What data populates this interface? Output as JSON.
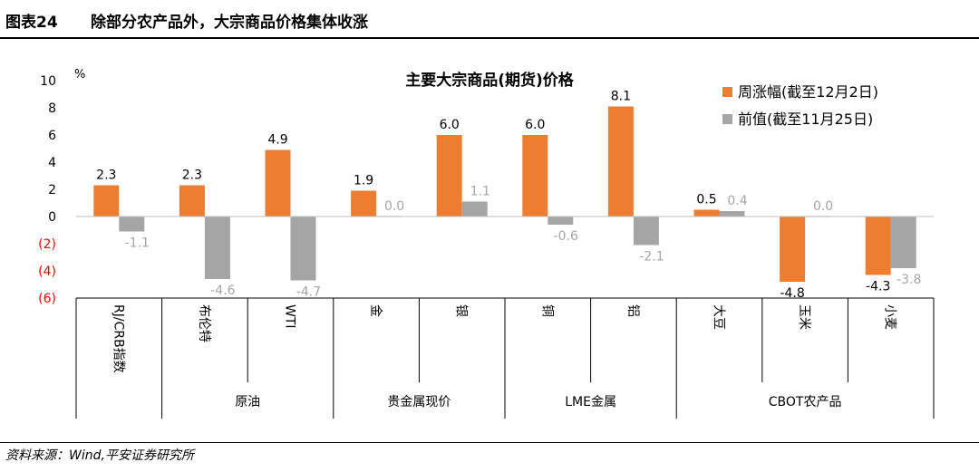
{
  "header": {
    "figure_label": "图表24",
    "figure_title": "除部分农产品外，大宗商品价格集体收涨"
  },
  "footer": {
    "source": "资料来源：Wind,平安证券研究所"
  },
  "colors": {
    "weekly": "#ED7D31",
    "previous": "#A5A5A5",
    "negative_tick": "#FF0000"
  },
  "chart_data": {
    "type": "bar",
    "title": "主要大宗商品(期货)价格",
    "unit": "%",
    "ylim": [
      -6,
      10
    ],
    "yticks": [
      10,
      8,
      6,
      4,
      2,
      0,
      -2,
      -4,
      -6
    ],
    "ytick_labels": [
      "10",
      "8",
      "6",
      "4",
      "2",
      "0",
      "(2)",
      "(4)",
      "(6)"
    ],
    "grid": false,
    "legend_position": "top-right",
    "categories": [
      "RJ/CRB指数",
      "布伦特",
      "WTI",
      "金",
      "银",
      "铜",
      "铝",
      "大豆",
      "玉米",
      "小麦"
    ],
    "groups": [
      {
        "label": "",
        "categories": [
          "RJ/CRB指数"
        ]
      },
      {
        "label": "原油",
        "categories": [
          "布伦特",
          "WTI"
        ]
      },
      {
        "label": "贵金属现价",
        "categories": [
          "金",
          "银"
        ]
      },
      {
        "label": "LME金属",
        "categories": [
          "铜",
          "铝"
        ]
      },
      {
        "label": "CBOT农产品",
        "categories": [
          "大豆",
          "玉米",
          "小麦"
        ]
      }
    ],
    "series": [
      {
        "name": "周涨幅(截至12月2日)",
        "values": [
          2.3,
          2.3,
          4.9,
          1.9,
          6.0,
          6.0,
          8.1,
          0.5,
          -4.8,
          -4.3
        ],
        "labels": [
          "2.3",
          "2.3",
          "4.9",
          "1.9",
          "6.0",
          "6.0",
          "8.1",
          "0.5",
          "-4.8",
          "-4.3"
        ]
      },
      {
        "name": "前值(截至11月25日)",
        "values": [
          -1.1,
          -4.6,
          -4.7,
          0.0,
          1.1,
          -0.6,
          -2.1,
          0.4,
          0.0,
          -3.8
        ],
        "labels": [
          "-1.1",
          "-4.6",
          "-4.7",
          "0.0",
          "1.1",
          "-0.6",
          "-2.1",
          "0.4",
          "0.0",
          "-3.8"
        ]
      }
    ]
  }
}
